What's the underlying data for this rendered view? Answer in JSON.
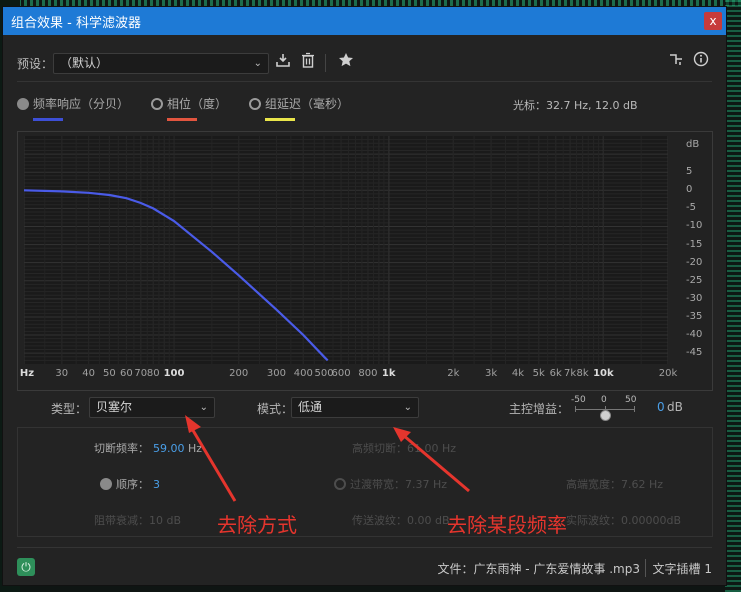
{
  "window": {
    "title": "组合效果 - 科学滤波器",
    "close": "x"
  },
  "preset": {
    "label": "预设：",
    "value": "（默认）"
  },
  "icons": {
    "download": "download-icon",
    "trash": "trash-icon",
    "star": "star-icon",
    "routing": "routing-icon",
    "info": "info-icon"
  },
  "legend": [
    {
      "label": "频率响应（分贝）",
      "color": "#3d4fd6",
      "selected": true
    },
    {
      "label": "相位（度）",
      "color": "#e2553f",
      "selected": false
    },
    {
      "label": "组延迟（毫秒）",
      "color": "#e9e54a",
      "selected": false
    }
  ],
  "cursor_readout": "光标：32.7 Hz, 12.0 dB",
  "chart_data": {
    "type": "line",
    "title": "",
    "xlabel": "Hz",
    "ylabel": "dB",
    "x_scale": "log",
    "xlim": [
      20,
      20000
    ],
    "ylim": [
      -48,
      15
    ],
    "x_ticks": [
      "Hz",
      "30",
      "40",
      "50",
      "60",
      "70",
      "80",
      "100",
      "200",
      "300",
      "400",
      "500",
      "600",
      "800",
      "1k",
      "2k",
      "3k",
      "4k",
      "5k",
      "6k",
      "7k",
      "8k",
      "10k",
      "20k"
    ],
    "y_ticks": [
      "dB",
      "5",
      "0",
      "-5",
      "-10",
      "-15",
      "-20",
      "-25",
      "-30",
      "-35",
      "-40",
      "-45"
    ],
    "series": [
      {
        "color": "#4a5be8",
        "x": [
          20,
          30,
          40,
          50,
          60,
          70,
          80,
          100,
          150,
          200,
          300,
          400,
          500,
          520
        ],
        "y": [
          0,
          -0.3,
          -0.7,
          -1.3,
          -2.2,
          -3.5,
          -5,
          -8.5,
          -17,
          -23.5,
          -33,
          -40,
          -46,
          -47
        ]
      }
    ]
  },
  "controls": {
    "type_label": "类型：",
    "type_value": "贝塞尔",
    "mode_label": "模式：",
    "mode_value": "低通",
    "gain_label": "主控增益：",
    "gain_ticks": [
      "-50",
      "0",
      "50"
    ],
    "gain_value": "0",
    "gain_unit": "dB"
  },
  "params": {
    "cutoff_label": "切断频率：",
    "cutoff_value": "59.00",
    "cutoff_unit": "Hz",
    "high_cut": "高频切断：61.00 Hz",
    "order_label": "顺序：",
    "order_value": "3",
    "transition": "过渡带宽：7.37 Hz",
    "high_width": "高端宽度：7.62 Hz",
    "stop_atten": "阻带衰减：10 dB",
    "pass_ripple": "传送波纹：0.00 dB",
    "actual_ripple": "实际波纹：0.00000dB"
  },
  "annotations": {
    "method": "去除方式",
    "freq": "去除某段频率"
  },
  "footer": {
    "file": "文件：广东雨神 - 广东爱情故事 .mp3",
    "slot": "文字插槽 1"
  }
}
